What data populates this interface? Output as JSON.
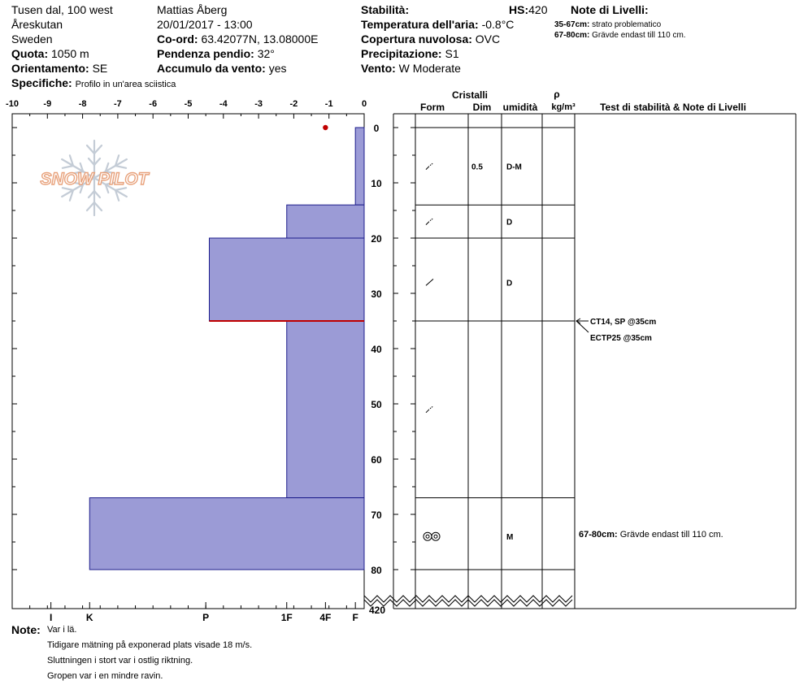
{
  "header": {
    "location": "Tusen dal, 100 west",
    "region": "Åreskutan",
    "country": "Sweden",
    "elevation_label": "Quota:",
    "elevation_value": "1050 m",
    "aspect_label": "Orientamento:",
    "aspect_value": "SE",
    "specifics_label": "Specifiche:",
    "specifics_value": "Profilo in un'area sciistica",
    "observer": "Mattias Åberg",
    "datetime": "20/01/2017 - 13:00",
    "coord_label": "Co-ord:",
    "coord_value": "63.42077N, 13.08000E",
    "slope_label": "Pendenza pendio:",
    "slope_value": "32°",
    "wind_loading_label": "Accumulo da vento:",
    "wind_loading_value": "yes",
    "stability_label": "Stabilità:",
    "hs_label": "HS:",
    "hs_value": "420",
    "air_temp_label": "Temperatura dell'aria:",
    "air_temp_value": "-0.8°C",
    "cloud_label": "Copertura nuvolosa:",
    "cloud_value": "OVC",
    "precip_label": "Precipitazione:",
    "precip_value": "S1",
    "wind_label": "Vento:",
    "wind_value": "W Moderate",
    "layer_notes_title": "Note di Livelli:",
    "layer_notes": [
      {
        "range": "35-67cm:",
        "text": "strato problematico"
      },
      {
        "range": "67-80cm:",
        "text": "Grävde endast till 110 cm."
      }
    ]
  },
  "columns": {
    "cristalli": "Cristalli",
    "form": "Form",
    "dim": "Dim",
    "umidita": "umidità",
    "rho": "ρ",
    "density_unit": "kg/m³",
    "tests_header": "Test di stabilità & Note di Livelli"
  },
  "logo_text": "SNOW PILOT",
  "chart_data": {
    "type": "bar",
    "orientation": "horizontal",
    "x_ticks": [
      "-10",
      "-9",
      "-8",
      "-7",
      "-6",
      "-5",
      "-4",
      "-3",
      "-2",
      "-1",
      "0"
    ],
    "xlim": [
      -10,
      0
    ],
    "y_ticks": [
      "0",
      "10",
      "20",
      "30",
      "40",
      "50",
      "60",
      "70",
      "80"
    ],
    "ylim": [
      0,
      80
    ],
    "y_break_label": "420",
    "hardness_ticks": [
      {
        "label": "I",
        "value": -8.9
      },
      {
        "label": "K",
        "value": -7.8
      },
      {
        "label": "P",
        "value": -4.5
      },
      {
        "label": "1F",
        "value": -2.2
      },
      {
        "label": "4F",
        "value": -1.1
      },
      {
        "label": "F",
        "value": -0.25
      }
    ],
    "temperature_points": [
      {
        "depth": 0,
        "temp": -1.1
      }
    ],
    "layers": [
      {
        "top": 0,
        "bottom": 14,
        "hardness": -0.25,
        "form": "decomposing",
        "dim": "0.5",
        "wetness": "D-M"
      },
      {
        "top": 14,
        "bottom": 20,
        "hardness": -2.2,
        "form": "decomposing",
        "dim": "",
        "wetness": "D"
      },
      {
        "top": 20,
        "bottom": 35,
        "hardness": -4.4,
        "form": "precip",
        "dim": "",
        "wetness": "D"
      },
      {
        "top": 35,
        "bottom": 67,
        "hardness": -2.2,
        "form": "decomposing",
        "dim": "",
        "wetness": ""
      },
      {
        "top": 67,
        "bottom": 80,
        "hardness": -7.8,
        "form": "melt",
        "dim": "",
        "wetness": "M"
      }
    ],
    "weak_layer_depth": 35,
    "tests": [
      {
        "depth": 35,
        "text": "CT14, SP @35cm"
      },
      {
        "depth": 35,
        "text": "ECTP25 @35cm"
      }
    ],
    "layer_comments": [
      {
        "top": 67,
        "bottom": 80,
        "range": "67-80cm:",
        "text": "Grävde endast till 110 cm."
      }
    ]
  },
  "notes": {
    "label": "Note:",
    "lines": [
      "Var i lä.",
      "Tidigare mätning på exponerad plats visade 18 m/s.",
      "Sluttningen i stort var i ostlig riktning.",
      "Gropen var i en mindre ravin."
    ]
  }
}
